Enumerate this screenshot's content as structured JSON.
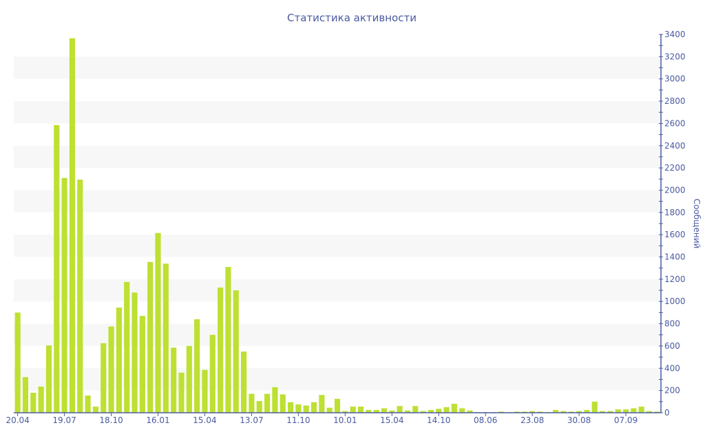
{
  "chart_data": {
    "type": "bar",
    "title": "Статистика активности",
    "xlabel": "",
    "ylabel": "Сообщений",
    "ylim": [
      0,
      3400
    ],
    "y_ticks": [
      0,
      200,
      400,
      600,
      800,
      1000,
      1200,
      1400,
      1600,
      1800,
      2000,
      2200,
      2400,
      2600,
      2800,
      3000,
      3200,
      3400
    ],
    "y_axis_side": "right",
    "grid": "alternating horizontal bands",
    "legend": "none",
    "colors": {
      "bar": "#bde032",
      "axis": "#4a5aa0",
      "band": "#f7f7f7"
    },
    "categories": [
      "20.04",
      "",
      "",
      "",
      "",
      "",
      "19.07",
      "",
      "",
      "",
      "",
      "",
      "18.10",
      "",
      "",
      "",
      "",
      "",
      "16.01",
      "",
      "",
      "",
      "",
      "",
      "15.04",
      "",
      "",
      "",
      "",
      "",
      "13.07",
      "",
      "",
      "",
      "",
      "",
      "11.10",
      "",
      "",
      "",
      "",
      "",
      "10.01",
      "",
      "",
      "",
      "",
      "",
      "15.04",
      "",
      "",
      "",
      "",
      "",
      "14.10",
      "",
      "",
      "",
      "",
      "",
      "08.06",
      "",
      "",
      "",
      "",
      "",
      "23.08",
      "",
      "",
      "",
      "",
      "",
      "30.08",
      "",
      "",
      "",
      "",
      "",
      "07.09",
      "",
      "",
      "",
      ""
    ],
    "values": [
      900,
      320,
      180,
      235,
      605,
      2585,
      2110,
      3365,
      2095,
      155,
      55,
      625,
      775,
      945,
      1175,
      1080,
      870,
      1355,
      1615,
      1340,
      585,
      360,
      600,
      840,
      385,
      700,
      1125,
      1310,
      1100,
      550,
      170,
      105,
      170,
      230,
      165,
      95,
      75,
      65,
      95,
      160,
      45,
      125,
      15,
      55,
      55,
      25,
      25,
      40,
      20,
      60,
      20,
      60,
      15,
      25,
      35,
      50,
      80,
      40,
      20,
      5,
      5,
      5,
      10,
      5,
      10,
      10,
      15,
      10,
      5,
      25,
      15,
      10,
      15,
      25,
      100,
      15,
      15,
      30,
      30,
      40,
      55,
      15,
      10
    ]
  }
}
